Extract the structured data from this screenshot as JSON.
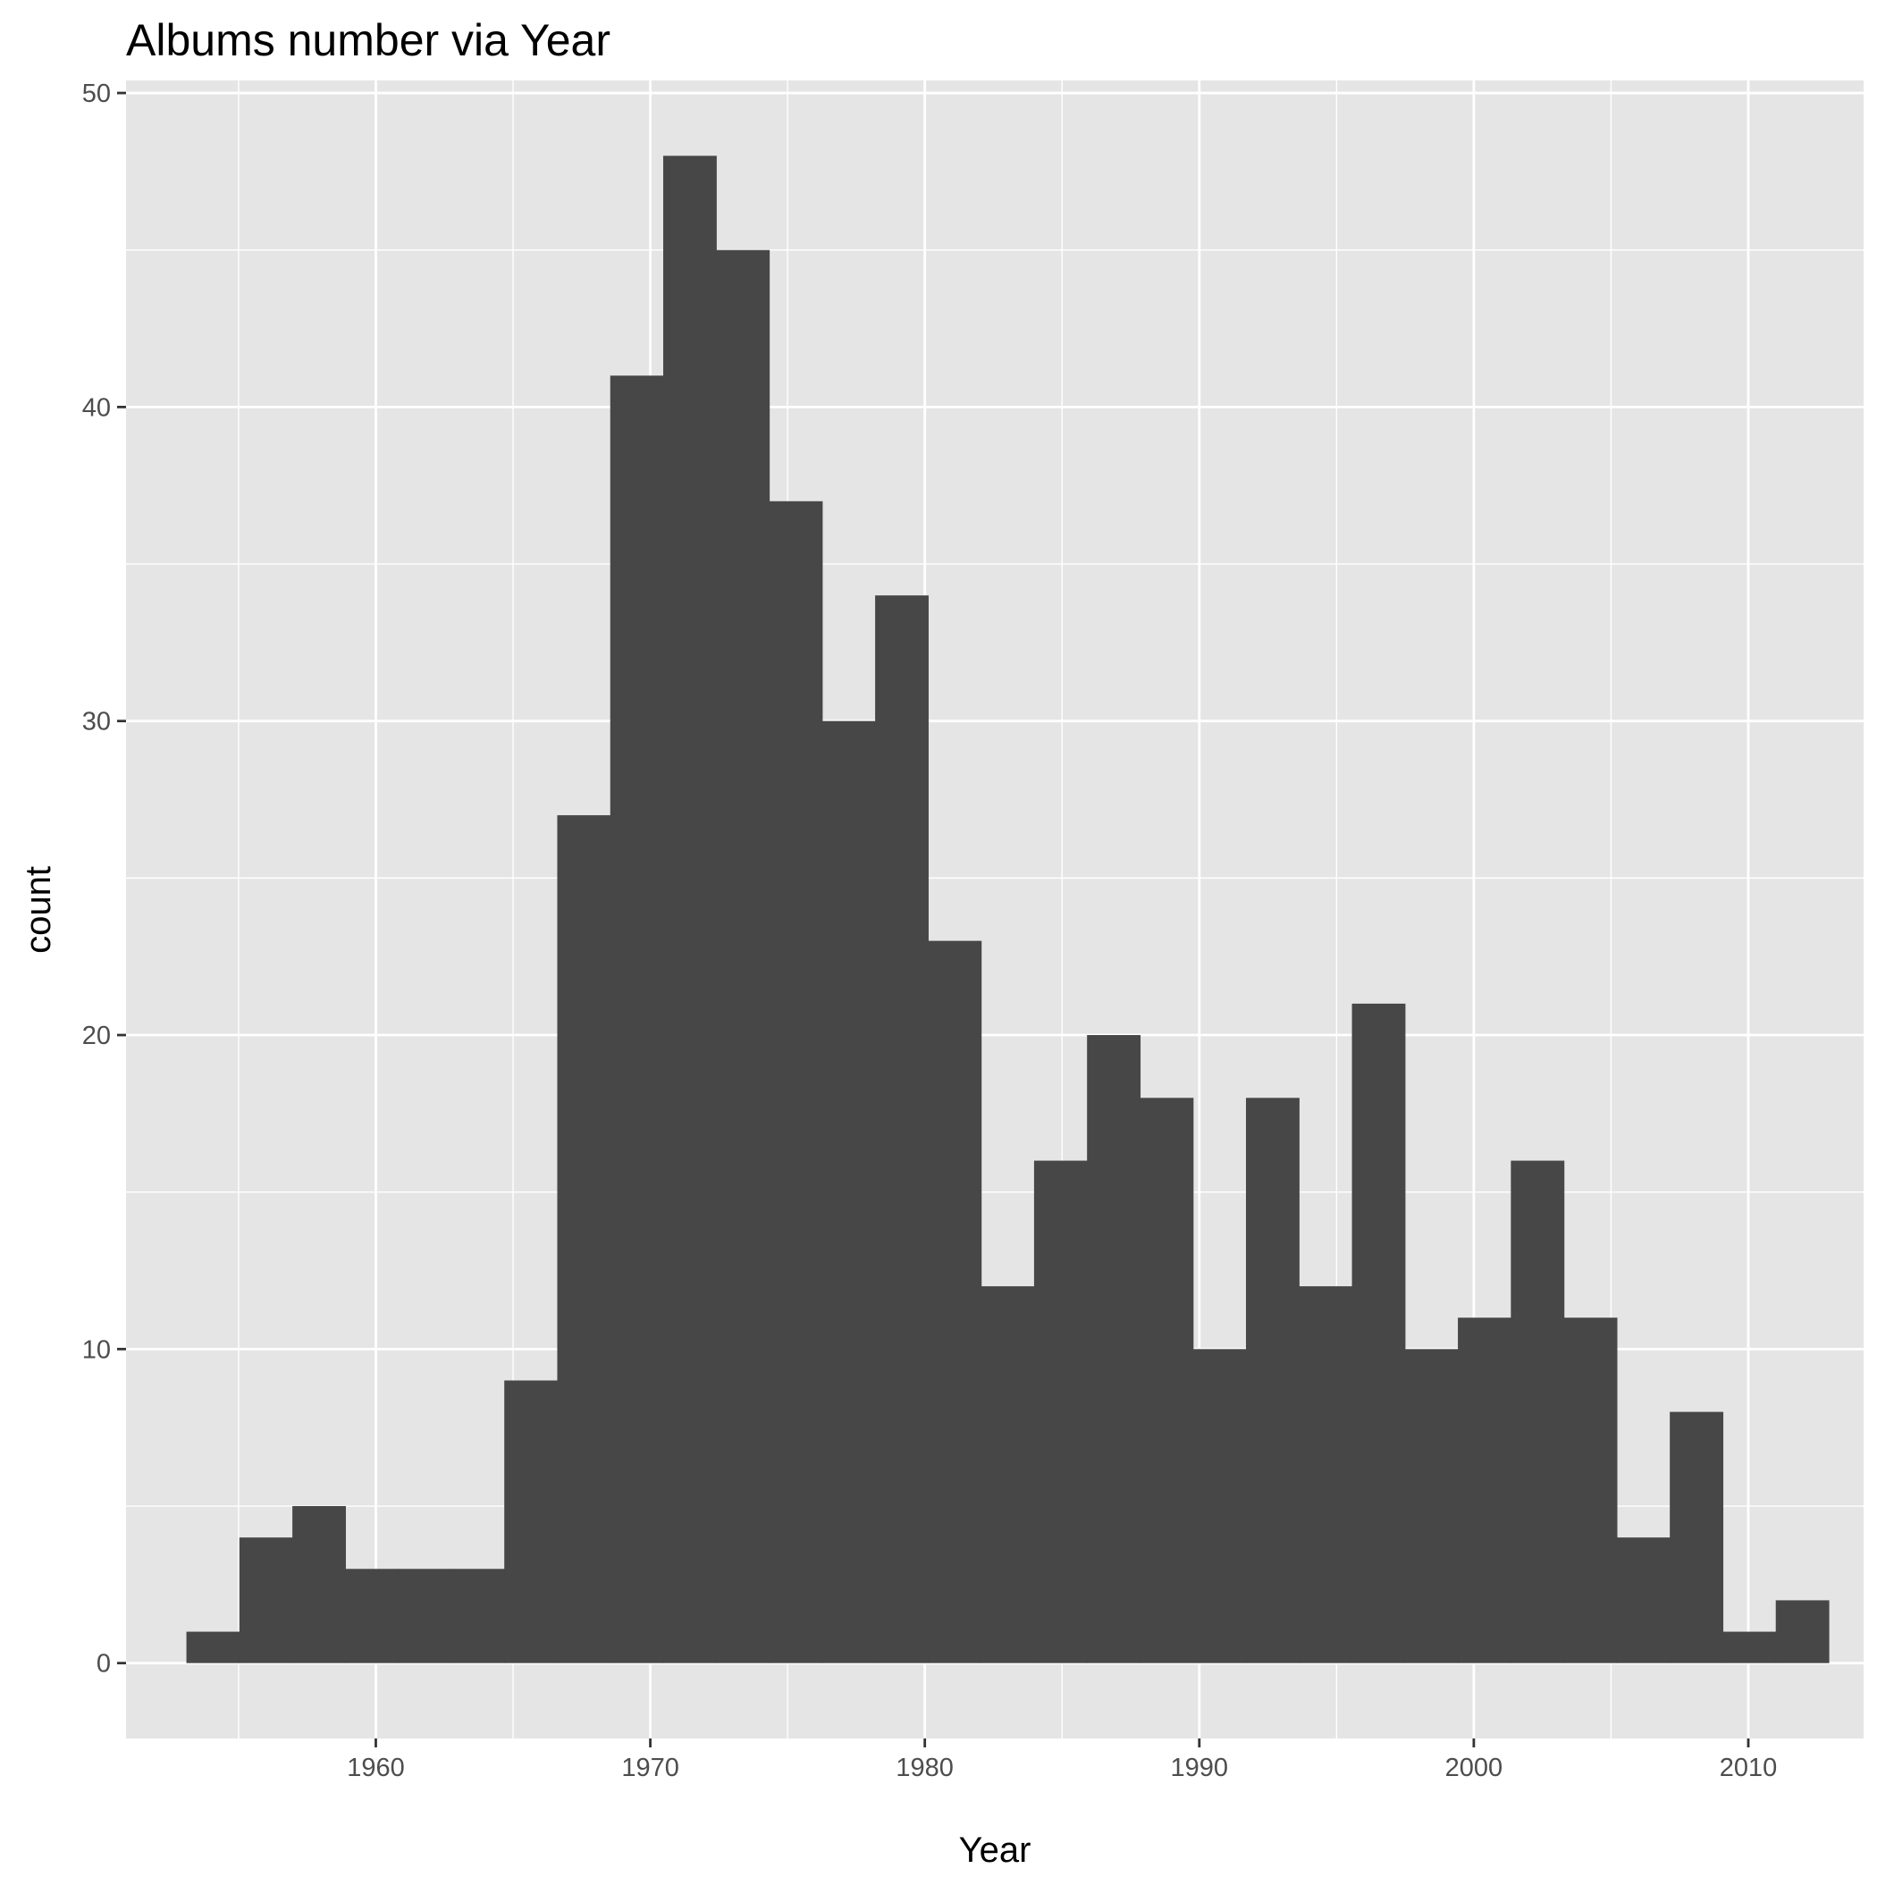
{
  "chart_data": {
    "type": "bar",
    "title": "Albums number via Year",
    "xlabel": "Year",
    "ylabel": "count",
    "xlim": [
      1950.9,
      2014.2
    ],
    "ylim": [
      -2.4,
      50.4
    ],
    "x_ticks": [
      1960,
      1970,
      1980,
      1990,
      2000,
      2010
    ],
    "y_ticks": [
      0,
      10,
      20,
      30,
      40,
      50
    ],
    "grid": true,
    "legend": "none",
    "bin_width": 1.93,
    "bin_start": 1953.1,
    "values": [
      1,
      4,
      5,
      3,
      3,
      3,
      9,
      27,
      41,
      48,
      45,
      37,
      30,
      34,
      23,
      12,
      16,
      20,
      18,
      10,
      18,
      12,
      21,
      10,
      11,
      16,
      11,
      4,
      8,
      1,
      2
    ]
  },
  "colors": {
    "panel": "#e5e5e5",
    "grid": "#ffffff",
    "bar": "#474747",
    "tick": "#333333",
    "tick_label": "#4d4d4d"
  }
}
